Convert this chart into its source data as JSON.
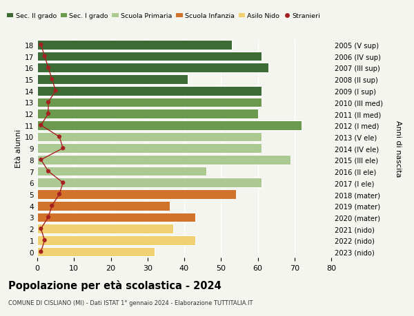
{
  "ages": [
    18,
    17,
    16,
    15,
    14,
    13,
    12,
    11,
    10,
    9,
    8,
    7,
    6,
    5,
    4,
    3,
    2,
    1,
    0
  ],
  "right_labels": [
    "2005 (V sup)",
    "2006 (IV sup)",
    "2007 (III sup)",
    "2008 (II sup)",
    "2009 (I sup)",
    "2010 (III med)",
    "2011 (II med)",
    "2012 (I med)",
    "2013 (V ele)",
    "2014 (IV ele)",
    "2015 (III ele)",
    "2016 (II ele)",
    "2017 (I ele)",
    "2018 (mater)",
    "2019 (mater)",
    "2020 (mater)",
    "2021 (nido)",
    "2022 (nido)",
    "2023 (nido)"
  ],
  "bar_values": [
    53,
    61,
    63,
    41,
    61,
    61,
    60,
    72,
    61,
    61,
    69,
    46,
    61,
    54,
    36,
    43,
    37,
    43,
    32
  ],
  "stranieri_values": [
    1,
    2,
    3,
    4,
    5,
    3,
    3,
    1,
    6,
    7,
    1,
    3,
    7,
    6,
    4,
    3,
    1,
    2,
    1
  ],
  "bar_colors": [
    "#3d6b35",
    "#3d6b35",
    "#3d6b35",
    "#3d6b35",
    "#3d6b35",
    "#6b9a4e",
    "#6b9a4e",
    "#6b9a4e",
    "#adc992",
    "#adc992",
    "#adc992",
    "#adc992",
    "#adc992",
    "#d2732c",
    "#d2732c",
    "#d2732c",
    "#f0d070",
    "#f0d070",
    "#f0d070"
  ],
  "legend_colors": [
    "#3d6b35",
    "#6b9a4e",
    "#adc992",
    "#d2732c",
    "#f0d070",
    "#c0392b"
  ],
  "legend_labels": [
    "Sec. II grado",
    "Sec. I grado",
    "Scuola Primaria",
    "Scuola Infanzia",
    "Asilo Nido",
    "Stranieri"
  ],
  "title": "Popolazione per età scolastica - 2024",
  "subtitle": "COMUNE DI CISLIANO (MI) - Dati ISTAT 1° gennaio 2024 - Elaborazione TUTTITALIA.IT",
  "ylabel_left": "Età alunni",
  "ylabel_right": "Anni di nascita",
  "stranieri_color": "#a52020",
  "background_color": "#f5f5f0",
  "xlim": [
    0,
    80
  ]
}
